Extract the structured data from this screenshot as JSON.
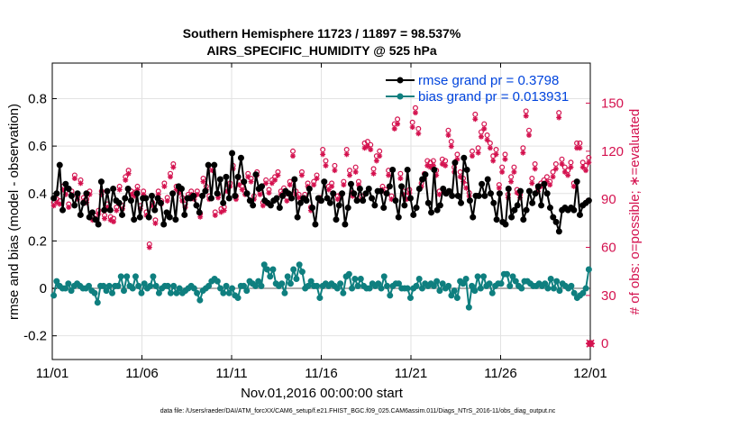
{
  "colors": {
    "rmse": "#000000",
    "bias": "#0f7f7f",
    "obs": "#d4124f",
    "legend_text": "#0044dd",
    "zero_line": "#b0b0b0"
  },
  "chart_data": {
    "type": "line",
    "title_line1": "Southern Hemisphere 11723 / 11897 = 98.537%",
    "title_line2": "AIRS_SPECIFIC_HUMIDITY @ 525 hPa",
    "xlabel": "Nov.01,2016 00:00:00 start",
    "ylabel_left": "rmse and bias (model - observation)",
    "ylabel_right": "# of obs: o=possible; ∗=evaluated",
    "footnote": "data file: /Users/raeder/DAI/ATM_forcXX/CAM6_setup/f.e21.FHIST_BGC.f09_025.CAM6assim.011/Diags_NTrS_2016-11/obs_diag_output.nc",
    "xlim": [
      0,
      30
    ],
    "ylim_left": [
      -0.3,
      0.95
    ],
    "ylim_right": [
      -10,
      175
    ],
    "x_ticks": [
      0,
      5,
      10,
      15,
      20,
      25,
      30
    ],
    "x_tick_labels": [
      "11/01",
      "11/06",
      "11/11",
      "11/16",
      "11/21",
      "11/26",
      "12/01"
    ],
    "y_left_ticks": [
      -0.2,
      0,
      0.2,
      0.4,
      0.6,
      0.8
    ],
    "y_left_tick_labels": [
      "-0.2",
      "0",
      "0.2",
      "0.4",
      "0.6",
      "0.8"
    ],
    "y_right_ticks": [
      0,
      30,
      60,
      90,
      120,
      150
    ],
    "y_right_tick_labels": [
      "0",
      "30",
      "60",
      "90",
      "120",
      "150"
    ],
    "legend": [
      {
        "name": "rmse",
        "label": "rmse grand pr = 0.3798"
      },
      {
        "name": "bias",
        "label": "bias grand pr = 0.013931"
      }
    ],
    "series": [
      {
        "name": "rmse",
        "values": [
          0.38,
          0.4,
          0.52,
          0.33,
          0.44,
          0.42,
          0.39,
          0.35,
          0.4,
          0.31,
          0.36,
          0.4,
          0.3,
          0.32,
          0.29,
          0.27,
          0.45,
          0.33,
          0.41,
          0.33,
          0.42,
          0.37,
          0.36,
          0.31,
          0.38,
          0.42,
          0.37,
          0.29,
          0.4,
          0.3,
          0.38,
          0.38,
          0.3,
          0.39,
          0.33,
          0.38,
          0.36,
          0.27,
          0.32,
          0.3,
          0.4,
          0.29,
          0.43,
          0.42,
          0.31,
          0.38,
          0.38,
          0.39,
          0.35,
          0.32,
          0.39,
          0.41,
          0.52,
          0.38,
          0.52,
          0.4,
          0.46,
          0.36,
          0.47,
          0.38,
          0.57,
          0.39,
          0.47,
          0.55,
          0.45,
          0.4,
          0.37,
          0.35,
          0.48,
          0.42,
          0.43,
          0.37,
          0.36,
          0.35,
          0.37,
          0.38,
          0.34,
          0.39,
          0.41,
          0.4,
          0.38,
          0.46,
          0.3,
          0.36,
          0.38,
          0.37,
          0.42,
          0.34,
          0.27,
          0.38,
          0.37,
          0.45,
          0.38,
          0.36,
          0.4,
          0.29,
          0.35,
          0.4,
          0.27,
          0.34,
          0.44,
          0.4,
          0.37,
          0.42,
          0.37,
          0.4,
          0.42,
          0.38,
          0.35,
          0.41,
          0.41,
          0.34,
          0.4,
          0.43,
          0.5,
          0.37,
          0.3,
          0.43,
          0.35,
          0.5,
          0.38,
          0.31,
          0.34,
          0.42,
          0.46,
          0.48,
          0.36,
          0.32,
          0.5,
          0.33,
          0.35,
          0.42,
          0.4,
          0.41,
          0.39,
          0.53,
          0.39,
          0.36,
          0.55,
          0.5,
          0.37,
          0.3,
          0.39,
          0.39,
          0.44,
          0.39,
          0.46,
          0.4,
          0.36,
          0.29,
          0.4,
          0.28,
          0.27,
          0.42,
          0.3,
          0.33,
          0.35,
          0.41,
          0.29,
          0.33,
          0.41,
          0.36,
          0.4,
          0.43,
          0.35,
          0.44,
          0.4,
          0.34,
          0.3,
          0.28,
          0.24,
          0.33,
          0.34,
          0.33,
          0.34,
          0.33,
          0.45,
          0.31,
          0.35,
          0.36,
          0.37
        ]
      },
      {
        "name": "bias",
        "values": [
          -0.03,
          0.03,
          0.01,
          0.0,
          0.0,
          0.02,
          -0.01,
          0.01,
          0.02,
          0.01,
          0.0,
          0.0,
          0.01,
          -0.01,
          -0.02,
          -0.06,
          0.01,
          0.01,
          -0.01,
          0.01,
          -0.02,
          0.01,
          0.01,
          0.05,
          -0.01,
          0.05,
          0.01,
          0.0,
          0.05,
          0.01,
          -0.02,
          0.02,
          0.0,
          0.01,
          0.05,
          0.01,
          -0.02,
          0.0,
          0.01,
          0.01,
          -0.02,
          0.01,
          -0.02,
          0.0,
          -0.02,
          -0.01,
          0.0,
          0.01,
          0.0,
          -0.02,
          -0.05,
          -0.01,
          0.0,
          0.01,
          0.03,
          0.04,
          0.03,
          0.0,
          -0.02,
          0.01,
          -0.02,
          0.0,
          -0.03,
          -0.04,
          0.01,
          0.01,
          -0.01,
          0.03,
          0.02,
          0.01,
          0.03,
          0.01,
          0.1,
          0.08,
          0.05,
          0.08,
          0.02,
          0.01,
          0.02,
          -0.02,
          0.05,
          0.02,
          0.08,
          0.04,
          0.1,
          0.07,
          0.0,
          0.01,
          0.03,
          0.01,
          0.01,
          -0.04,
          0.01,
          0.02,
          0.01,
          0.02,
          0.01,
          0.0,
          0.02,
          -0.02,
          0.05,
          0.06,
          0.0,
          0.04,
          0.01,
          0.04,
          0.01,
          0.0,
          0.0,
          0.02,
          0.01,
          0.02,
          0.0,
          0.05,
          0.01,
          -0.03,
          0.01,
          0.02,
          0.02,
          0.0,
          0.0,
          0.0,
          -0.04,
          0.0,
          0.01,
          0.04,
          0.0,
          0.02,
          0.01,
          0.02,
          0.01,
          0.03,
          -0.01,
          0.02,
          0.0,
          0.01,
          -0.03,
          -0.01,
          -0.04,
          0.03,
          0.02,
          0.04,
          -0.08,
          0.01,
          -0.01,
          0.05,
          0.0,
          0.05,
          0.01,
          0.02,
          -0.02,
          0.01,
          0.02,
          0.02,
          0.06,
          0.06,
          0.01,
          0.05,
          0.03,
          0.01,
          0.0,
          0.03,
          0.03,
          0.02,
          0.01,
          0.01,
          0.02,
          0.01,
          0.02,
          0.0,
          0.04,
          0.0,
          0.03,
          -0.01,
          0.02,
          0.01,
          0.0,
          0.01,
          -0.02,
          -0.04,
          -0.03,
          -0.02,
          0.0,
          0.08
        ]
      },
      {
        "name": "obs_possible",
        "values": [
          88,
          90,
          89,
          98,
          95,
          87,
          95,
          105,
          92,
          102,
          91,
          90,
          95,
          79,
          80,
          83,
          95,
          80,
          87,
          79,
          78,
          85,
          98,
          86,
          104,
          108,
          95,
          94,
          98,
          86,
          95,
          82,
          62,
          88,
          77,
          95,
          89,
          100,
          91,
          106,
          112,
          98,
          96,
          91,
          87,
          93,
          95,
          92,
          95,
          81,
          103,
          98,
          92,
          110,
          82,
          93,
          84,
          85,
          97,
          100,
          111,
          92,
          101,
          98,
          95,
          106,
          103,
          92,
          107,
          95,
          88,
          102,
          96,
          102,
          104,
          107,
          95,
          97,
          91,
          101,
          120,
          95,
          93,
          107,
          93,
          100,
          85,
          101,
          105,
          91,
          121,
          114,
          98,
          100,
          111,
          92,
          93,
          101,
          121,
          108,
          94,
          110,
          101,
          92,
          125,
          126,
          124,
          109,
          117,
          120,
          98,
          96,
          108,
          92,
          137,
          140,
          106,
          95,
          92,
          96,
          138,
          147,
          134,
          100,
          106,
          114,
          113,
          114,
          108,
          95,
          115,
          114,
          133,
          126,
          110,
          118,
          107,
          103,
          99,
          94,
          120,
          143,
          122,
          132,
          137,
          130,
          125,
          117,
          121,
          99,
          110,
          118,
          93,
          104,
          110,
          96,
          93,
          122,
          145,
          133,
          103,
          112,
          97,
          100,
          102,
          104,
          101,
          107,
          112,
          144,
          115,
          110,
          108,
          113,
          100,
          125,
          125,
          113,
          111,
          116
        ]
      },
      {
        "name": "obs_evaluated",
        "values": [
          86,
          88,
          87,
          96,
          93,
          85,
          93,
          103,
          90,
          100,
          89,
          88,
          93,
          77,
          78,
          81,
          93,
          78,
          85,
          77,
          76,
          83,
          96,
          84,
          102,
          106,
          93,
          92,
          96,
          84,
          93,
          80,
          60,
          86,
          75,
          93,
          87,
          98,
          89,
          104,
          110,
          96,
          94,
          89,
          85,
          91,
          93,
          90,
          93,
          79,
          101,
          96,
          90,
          108,
          80,
          91,
          82,
          83,
          95,
          98,
          109,
          90,
          99,
          96,
          93,
          104,
          101,
          90,
          105,
          93,
          86,
          100,
          94,
          100,
          102,
          105,
          93,
          95,
          89,
          99,
          117,
          93,
          91,
          105,
          91,
          98,
          83,
          99,
          103,
          89,
          118,
          111,
          96,
          98,
          108,
          90,
          91,
          99,
          118,
          105,
          92,
          107,
          99,
          90,
          122,
          123,
          121,
          106,
          114,
          117,
          96,
          94,
          105,
          90,
          134,
          137,
          103,
          93,
          90,
          94,
          135,
          144,
          131,
          98,
          103,
          111,
          110,
          111,
          105,
          93,
          112,
          111,
          130,
          123,
          107,
          115,
          104,
          101,
          97,
          92,
          117,
          140,
          119,
          129,
          134,
          127,
          122,
          114,
          118,
          97,
          107,
          115,
          91,
          101,
          107,
          94,
          91,
          119,
          142,
          130,
          100,
          109,
          95,
          98,
          100,
          101,
          99,
          104,
          109,
          141,
          112,
          107,
          105,
          110,
          98,
          122,
          122,
          110,
          108,
          113
        ]
      }
    ],
    "special_point": {
      "x": 30,
      "y": 0,
      "axis": "right"
    }
  }
}
